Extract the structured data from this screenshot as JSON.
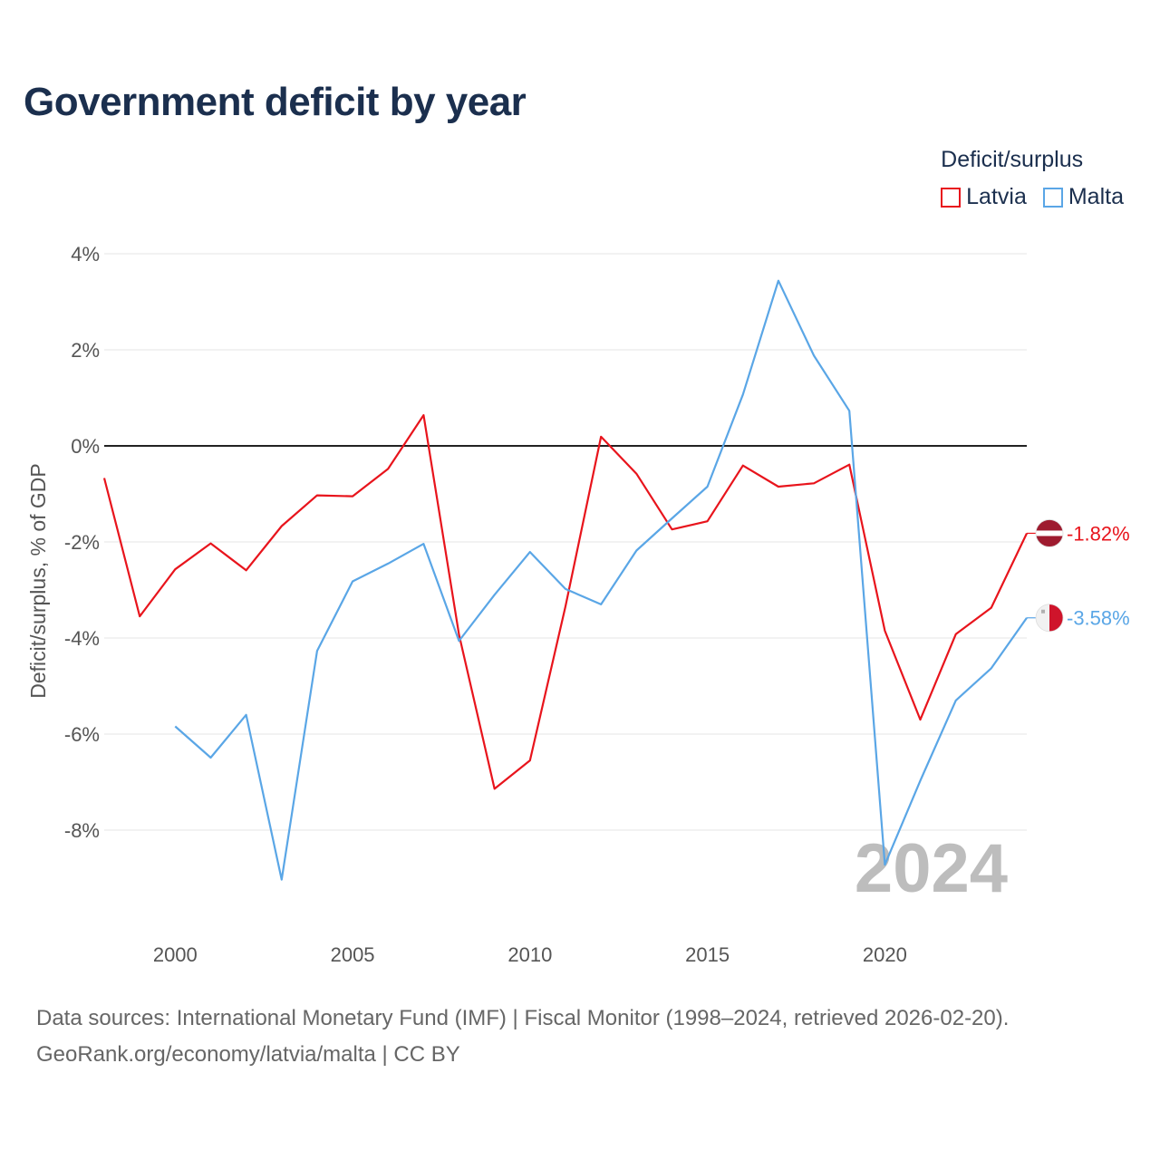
{
  "title": "Government deficit by year",
  "legend": {
    "title": "Deficit/surplus",
    "items": [
      {
        "label": "Latvia",
        "color": "#e8141c"
      },
      {
        "label": "Malta",
        "color": "#5aa6e6"
      }
    ]
  },
  "chart_data": {
    "type": "line",
    "title": "Government deficit by year",
    "xlabel": "",
    "ylabel": "Deficit/surplus, % of GDP",
    "xlim": [
      1998,
      2024
    ],
    "ylim": [
      -10,
      4
    ],
    "y_ticks": [
      4,
      2,
      0,
      -2,
      -4,
      -6,
      -8
    ],
    "y_tick_labels": [
      "4%",
      "2%",
      "0%",
      "-2%",
      "-4%",
      "-6%",
      "-8%"
    ],
    "x_ticks": [
      2000,
      2005,
      2010,
      2015,
      2020
    ],
    "x_tick_labels": [
      "2000",
      "2005",
      "2010",
      "2015",
      "2020"
    ],
    "grid": true,
    "zero_line": true,
    "legend_position": "top-right",
    "year_watermark": "2024",
    "series": [
      {
        "name": "Latvia",
        "color": "#e8141c",
        "end_label": "-1.82%",
        "x": [
          1998,
          1999,
          2000,
          2001,
          2002,
          2003,
          2004,
          2005,
          2006,
          2007,
          2008,
          2009,
          2010,
          2011,
          2012,
          2013,
          2014,
          2015,
          2016,
          2017,
          2018,
          2019,
          2020,
          2021,
          2022,
          2023,
          2024
        ],
        "values": [
          -0.67,
          -3.55,
          -2.57,
          -2.03,
          -2.59,
          -1.67,
          -1.03,
          -1.05,
          -0.48,
          0.64,
          -3.93,
          -7.14,
          -6.55,
          -3.34,
          0.19,
          -0.58,
          -1.74,
          -1.57,
          -0.41,
          -0.85,
          -0.78,
          -0.39,
          -3.85,
          -5.7,
          -3.92,
          -3.37,
          -1.82
        ]
      },
      {
        "name": "Malta",
        "color": "#5aa6e6",
        "end_label": "-3.58%",
        "x": [
          2000,
          2001,
          2002,
          2003,
          2004,
          2005,
          2006,
          2007,
          2008,
          2009,
          2010,
          2011,
          2012,
          2013,
          2014,
          2015,
          2016,
          2017,
          2018,
          2019,
          2020,
          2021,
          2022,
          2023,
          2024
        ],
        "values": [
          -5.84,
          -6.49,
          -5.6,
          -9.03,
          -4.27,
          -2.82,
          -2.45,
          -2.04,
          -4.06,
          -3.1,
          -2.21,
          -2.98,
          -3.3,
          -2.18,
          -1.51,
          -0.85,
          1.07,
          3.44,
          1.88,
          0.73,
          -8.72,
          -6.97,
          -5.3,
          -4.63,
          -3.58
        ]
      }
    ]
  },
  "source": {
    "line1": "Data sources: International Monetary Fund (IMF) | Fiscal Monitor (1998–2024, retrieved 2026-02-20).",
    "line2": "GeoRank.org/economy/latvia/malta | CC BY"
  }
}
